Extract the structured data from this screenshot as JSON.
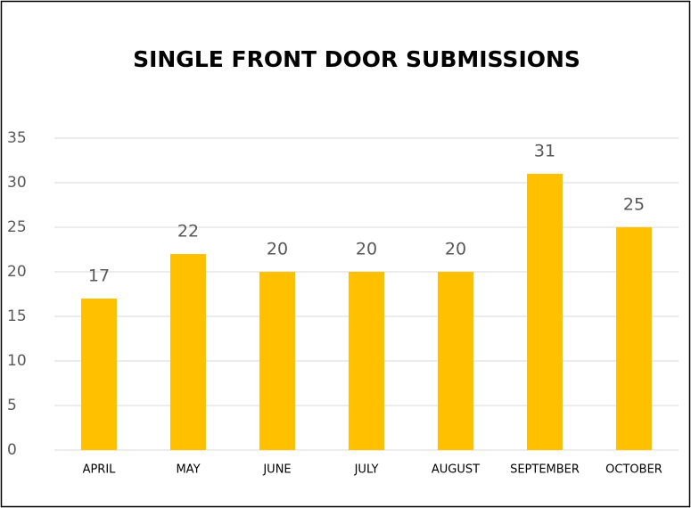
{
  "chart_data": {
    "type": "bar",
    "title": "SINGLE FRONT DOOR SUBMISSIONS",
    "categories": [
      "APRIL",
      "MAY",
      "JUNE",
      "JULY",
      "AUGUST",
      "SEPTEMBER",
      "OCTOBER"
    ],
    "values": [
      17,
      22,
      20,
      20,
      20,
      31,
      25
    ],
    "color": "#ffc000",
    "ylim": [
      0,
      35
    ],
    "yticks": [
      0,
      5,
      10,
      15,
      20,
      25,
      30,
      35
    ],
    "grid": true,
    "data_labels": true
  }
}
